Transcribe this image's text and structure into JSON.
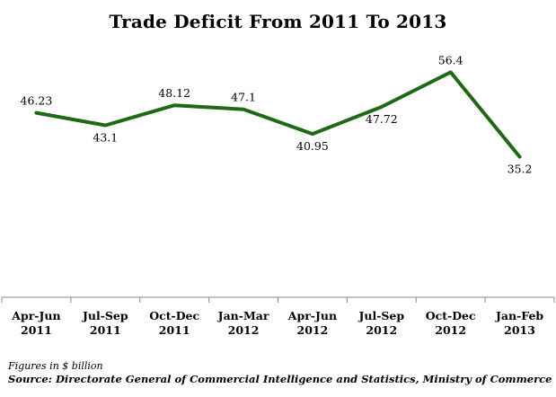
{
  "chart_data": {
    "type": "line",
    "title": "Trade Deficit From 2011 To 2013",
    "categories": [
      [
        "Apr-Jun",
        "2011"
      ],
      [
        "Jul-Sep",
        "2011"
      ],
      [
        "Oct-Dec",
        "2011"
      ],
      [
        "Jan-Mar",
        "2012"
      ],
      [
        "Apr-Jun",
        "2012"
      ],
      [
        "Jul-Sep",
        "2012"
      ],
      [
        "Oct-Dec",
        "2012"
      ],
      [
        "Jan-Feb",
        "2013"
      ]
    ],
    "series": [
      {
        "values": [
          46.23,
          43.1,
          48.12,
          47.1,
          40.95,
          47.72,
          56.4,
          35.2
        ],
        "labels": [
          "46.23",
          "43.1",
          "48.12",
          "47.1",
          "40.95",
          "47.72",
          "56.4",
          "35.2"
        ],
        "color": "#1e6a14"
      }
    ],
    "ylim": [
      0,
      70
    ],
    "grid": false,
    "legend": "none"
  },
  "footer": {
    "note": "Figures in $ billion",
    "source": "Source: Directorate General of Commercial Intelligence and Statistics, Ministry of Commerce"
  }
}
